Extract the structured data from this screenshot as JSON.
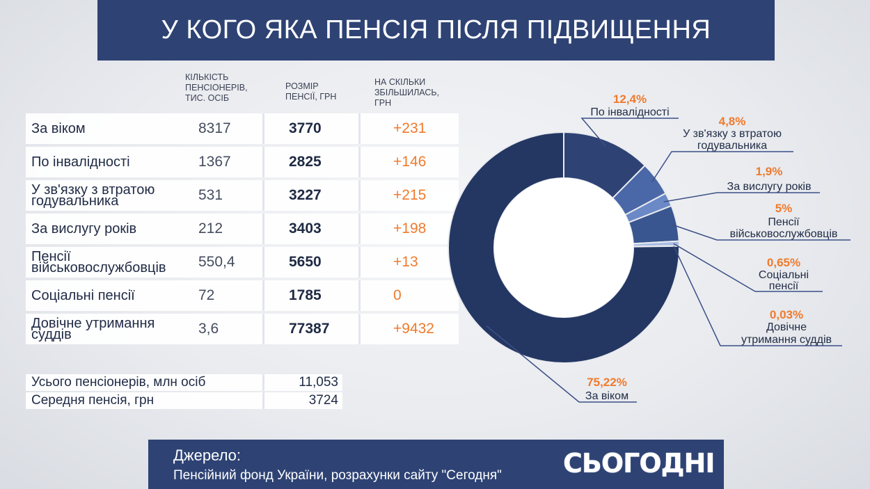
{
  "title": "У КОГО ЯКА ПЕНСІЯ ПІСЛЯ ПІДВИЩЕННЯ",
  "columns": {
    "count": [
      "КІЛЬКІСТЬ",
      "ПЕНСІОНЕРІВ,",
      "ТИС. ОСІБ"
    ],
    "size": [
      "РОЗМІР",
      "ПЕНСІЇ, ГРН"
    ],
    "increase": [
      "НА СКІЛЬКИ",
      "ЗБІЛЬШИЛАСЬ,",
      "ГРН"
    ]
  },
  "rows": [
    {
      "name": [
        "За віком"
      ],
      "count": "8317",
      "size": "3770",
      "increase": "+231"
    },
    {
      "name": [
        "По інвалідності"
      ],
      "count": "1367",
      "size": "2825",
      "increase": "+146"
    },
    {
      "name": [
        "У зв'язку з втратою",
        "годувальника"
      ],
      "count": "531",
      "size": "3227",
      "increase": "+215"
    },
    {
      "name": [
        "За вислугу років"
      ],
      "count": "212",
      "size": "3403",
      "increase": "+198"
    },
    {
      "name": [
        "Пенсії",
        "військовослужбовців"
      ],
      "count": "550,4",
      "size": "5650",
      "increase": "+13"
    },
    {
      "name": [
        "Соціальні пенсії"
      ],
      "count": "72",
      "size": "1785",
      "increase": "0"
    },
    {
      "name": [
        "Довічне утримання",
        "суддів"
      ],
      "count": "3,6",
      "size": "77387",
      "increase": "+9432"
    }
  ],
  "totals": [
    {
      "label": "Усього пенсіонерів, млн осіб",
      "value": "11,053"
    },
    {
      "label": "Середня пенсія, грн",
      "value": "3724"
    }
  ],
  "source": {
    "label": "Джерело:",
    "text": "Пенсійний фонд України, розрахунки сайту \"Сегодня\"",
    "logo": "СЬОГОДНІ"
  },
  "chart_data": {
    "type": "pie",
    "donut": true,
    "slices": [
      {
        "pct": "12,4%",
        "value": 12.4,
        "label": [
          "По інвалідності"
        ],
        "color": "#2e4374"
      },
      {
        "pct": "4,8%",
        "value": 4.8,
        "label": [
          "У зв'язку з втратою",
          "годувальника"
        ],
        "color": "#4a67a7"
      },
      {
        "pct": "1,9%",
        "value": 1.9,
        "label": [
          "За вислугу років"
        ],
        "color": "#6b89c6"
      },
      {
        "pct": "5%",
        "value": 5.0,
        "label": [
          "Пенсії",
          "військовослужбовців"
        ],
        "color": "#3a5690"
      },
      {
        "pct": "0,65%",
        "value": 0.65,
        "label": [
          "Соціальні",
          "пенсії"
        ],
        "color": "#a9bde3"
      },
      {
        "pct": "0,03%",
        "value": 0.03,
        "label": [
          "Довічне",
          "утримання суддів"
        ],
        "color": "#7e98cf"
      },
      {
        "pct": "75,22%",
        "value": 75.22,
        "label": [
          "За віком"
        ],
        "color": "#243763"
      }
    ]
  },
  "colors": {
    "navy": "#2e4374",
    "accent": "#f07a2c"
  }
}
